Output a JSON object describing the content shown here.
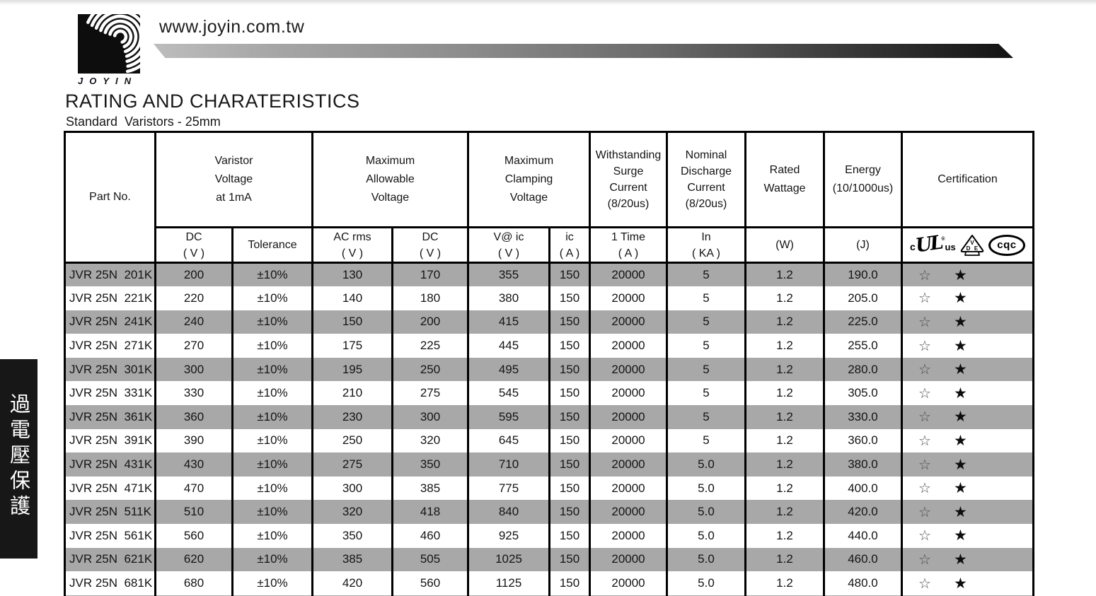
{
  "colors": {
    "row_stripe": "#a8a8a8",
    "sidebar_bg": "#171717",
    "line": "#000000"
  },
  "page": {
    "url": "www.joyin.com.tw",
    "brand": "JOYIN",
    "title": "RATING AND CHARATERISTICS",
    "subtitle": "Standard  Varistors - 25mm",
    "side_tab_text": "過電壓保護"
  },
  "table": {
    "header": {
      "part_no": "Part No.",
      "varistor_voltage": "Varistor\nVoltage\nat 1mA",
      "max_allowable": "Maximum\nAllowable\nVoltage",
      "max_clamping": "Maximum\nClamping\nVoltage",
      "withstanding": "Withstanding\nSurge\nCurrent\n(8/20us)",
      "nominal": "Nominal\nDischarge\nCurrent\n(8/20us)",
      "rated_wattage": "Rated\nWattage",
      "energy": "Energy\n(10/1000us)",
      "certification": "Certification"
    },
    "subheader": {
      "dc1": "DC\n( V )",
      "tolerance": "Tolerance",
      "ac_rms": "AC rms\n( V )",
      "dc2": "DC\n( V )",
      "v_ic": "V@ ic\n( V )",
      "ic": "ic\n( A )",
      "one_time": "1 Time\n( A )",
      "in_ka": "In\n( KA )",
      "w": "(W)",
      "j": "(J)"
    },
    "cert_marks": {
      "ul_prefix": "c",
      "ul": "UL",
      "ul_reg": "®",
      "ul_suffix": "us",
      "vde_v": "V",
      "vde_d": "D",
      "vde_e": "E",
      "cqc": "cqc"
    },
    "row_cert": {
      "ul_star": "☆",
      "vde_star": "★"
    },
    "rows": [
      {
        "part": "JVR 25N  201K",
        "dc": "200",
        "tol": "±10%",
        "ac": "130",
        "dcv": "170",
        "vc": "355",
        "ic": "150",
        "surge": "20000",
        "in_ka": "5",
        "w": "1.2",
        "j": "190.0"
      },
      {
        "part": "JVR 25N  221K",
        "dc": "220",
        "tol": "±10%",
        "ac": "140",
        "dcv": "180",
        "vc": "380",
        "ic": "150",
        "surge": "20000",
        "in_ka": "5",
        "w": "1.2",
        "j": "205.0"
      },
      {
        "part": "JVR 25N  241K",
        "dc": "240",
        "tol": "±10%",
        "ac": "150",
        "dcv": "200",
        "vc": "415",
        "ic": "150",
        "surge": "20000",
        "in_ka": "5",
        "w": "1.2",
        "j": "225.0"
      },
      {
        "part": "JVR 25N  271K",
        "dc": "270",
        "tol": "±10%",
        "ac": "175",
        "dcv": "225",
        "vc": "445",
        "ic": "150",
        "surge": "20000",
        "in_ka": "5",
        "w": "1.2",
        "j": "255.0"
      },
      {
        "part": "JVR 25N  301K",
        "dc": "300",
        "tol": "±10%",
        "ac": "195",
        "dcv": "250",
        "vc": "495",
        "ic": "150",
        "surge": "20000",
        "in_ka": "5",
        "w": "1.2",
        "j": "280.0"
      },
      {
        "part": "JVR 25N  331K",
        "dc": "330",
        "tol": "±10%",
        "ac": "210",
        "dcv": "275",
        "vc": "545",
        "ic": "150",
        "surge": "20000",
        "in_ka": "5",
        "w": "1.2",
        "j": "305.0"
      },
      {
        "part": "JVR 25N  361K",
        "dc": "360",
        "tol": "±10%",
        "ac": "230",
        "dcv": "300",
        "vc": "595",
        "ic": "150",
        "surge": "20000",
        "in_ka": "5",
        "w": "1.2",
        "j": "330.0"
      },
      {
        "part": "JVR 25N  391K",
        "dc": "390",
        "tol": "±10%",
        "ac": "250",
        "dcv": "320",
        "vc": "645",
        "ic": "150",
        "surge": "20000",
        "in_ka": "5",
        "w": "1.2",
        "j": "360.0"
      },
      {
        "part": "JVR 25N  431K",
        "dc": "430",
        "tol": "±10%",
        "ac": "275",
        "dcv": "350",
        "vc": "710",
        "ic": "150",
        "surge": "20000",
        "in_ka": "5.0",
        "w": "1.2",
        "j": "380.0"
      },
      {
        "part": "JVR 25N  471K",
        "dc": "470",
        "tol": "±10%",
        "ac": "300",
        "dcv": "385",
        "vc": "775",
        "ic": "150",
        "surge": "20000",
        "in_ka": "5.0",
        "w": "1.2",
        "j": "400.0"
      },
      {
        "part": "JVR 25N  511K",
        "dc": "510",
        "tol": "±10%",
        "ac": "320",
        "dcv": "418",
        "vc": "840",
        "ic": "150",
        "surge": "20000",
        "in_ka": "5.0",
        "w": "1.2",
        "j": "420.0"
      },
      {
        "part": "JVR 25N  561K",
        "dc": "560",
        "tol": "±10%",
        "ac": "350",
        "dcv": "460",
        "vc": "925",
        "ic": "150",
        "surge": "20000",
        "in_ka": "5.0",
        "w": "1.2",
        "j": "440.0"
      },
      {
        "part": "JVR 25N  621K",
        "dc": "620",
        "tol": "±10%",
        "ac": "385",
        "dcv": "505",
        "vc": "1025",
        "ic": "150",
        "surge": "20000",
        "in_ka": "5.0",
        "w": "1.2",
        "j": "460.0"
      },
      {
        "part": "JVR 25N  681K",
        "dc": "680",
        "tol": "±10%",
        "ac": "420",
        "dcv": "560",
        "vc": "1125",
        "ic": "150",
        "surge": "20000",
        "in_ka": "5.0",
        "w": "1.2",
        "j": "480.0"
      }
    ]
  }
}
